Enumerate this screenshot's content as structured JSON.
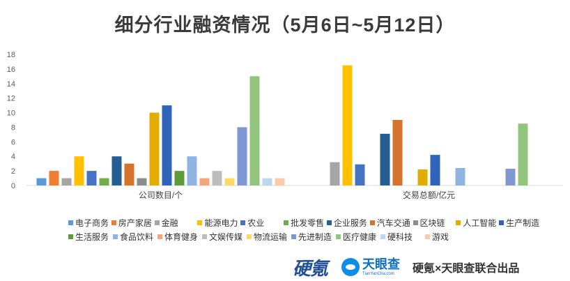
{
  "title": "细分行业融资情况（5月6日~5月12日）",
  "chart_data": {
    "type": "bar",
    "categories": [
      "公司数目/个",
      "交易总额/亿元"
    ],
    "ylim": [
      0,
      18
    ],
    "yticks": [
      0,
      2,
      4,
      6,
      8,
      10,
      12,
      14,
      16,
      18
    ],
    "grid": false,
    "legend_position": "bottom",
    "series": [
      {
        "name": "电子商务",
        "color": "#5b9bd5",
        "values": [
          1,
          0
        ]
      },
      {
        "name": "房产家居",
        "color": "#ed7d31",
        "values": [
          2,
          0
        ]
      },
      {
        "name": "金融",
        "color": "#a5a5a5",
        "values": [
          1,
          3.2
        ]
      },
      {
        "name": "能源电力",
        "color": "#ffc000",
        "values": [
          4,
          16.5
        ]
      },
      {
        "name": "农业",
        "color": "#4472c4",
        "values": [
          2,
          2.9
        ]
      },
      {
        "name": "批发零售",
        "color": "#70ad47",
        "values": [
          1,
          0
        ]
      },
      {
        "name": "企业服务",
        "color": "#255e91",
        "values": [
          4,
          7.1
        ]
      },
      {
        "name": "汽车交通",
        "color": "#d5722c",
        "values": [
          3,
          9
        ]
      },
      {
        "name": "区块链",
        "color": "#8c8c8c",
        "values": [
          1,
          0
        ]
      },
      {
        "name": "人工智能",
        "color": "#e3ac00",
        "values": [
          10,
          2.2
        ]
      },
      {
        "name": "生产制造",
        "color": "#3163b8",
        "values": [
          11,
          4.2
        ]
      },
      {
        "name": "生活服务",
        "color": "#5e9c3a",
        "values": [
          2,
          0
        ]
      },
      {
        "name": "食品饮料",
        "color": "#8fb4e3",
        "values": [
          4,
          2.4
        ]
      },
      {
        "name": "体育健身",
        "color": "#f4a57c",
        "values": [
          1,
          0
        ]
      },
      {
        "name": "文娱传媒",
        "color": "#bdbdbd",
        "values": [
          2,
          0
        ]
      },
      {
        "name": "物流运输",
        "color": "#ffd966",
        "values": [
          1,
          0
        ]
      },
      {
        "name": "先进制造",
        "color": "#7f97d3",
        "values": [
          8,
          2.3
        ]
      },
      {
        "name": "医疗健康",
        "color": "#93c47d",
        "values": [
          15,
          8.5
        ]
      },
      {
        "name": "硬科技",
        "color": "#bdd7ee",
        "values": [
          1,
          0
        ]
      },
      {
        "name": "游戏",
        "color": "#f8cbad",
        "values": [
          1,
          0
        ]
      }
    ]
  },
  "footer": {
    "logo_yq": "硬氪",
    "logo_tyc": "天眼查",
    "logo_tyc_url": "TianYanCha.com",
    "credit": "硬氪×天眼查联合出品"
  }
}
